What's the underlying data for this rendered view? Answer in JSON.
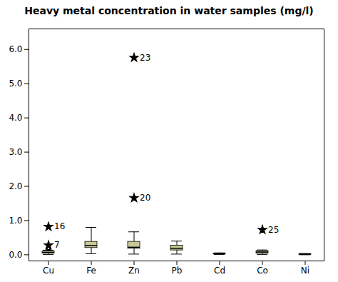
{
  "chart_data": {
    "type": "box",
    "title": "Heavy metal concentration in water samples (mg/l)",
    "categories": [
      "Cu",
      "Fe",
      "Zn",
      "Pb",
      "Cd",
      "Co",
      "Ni"
    ],
    "boxes": [
      {
        "q1": 0.04,
        "median": 0.07,
        "q3": 0.1,
        "whislo": 0.01,
        "whishi": 0.13,
        "extremes": [
          0.82,
          0.28
        ],
        "extreme_labels": [
          "16",
          "7"
        ],
        "outliers": [
          0.17,
          0.2
        ]
      },
      {
        "q1": 0.2,
        "median": 0.27,
        "q3": 0.38,
        "whislo": 0.03,
        "whishi": 0.8,
        "extremes": [],
        "extreme_labels": [],
        "outliers": []
      },
      {
        "q1": 0.18,
        "median": 0.22,
        "q3": 0.38,
        "whislo": 0.02,
        "whishi": 0.67,
        "extremes": [
          5.76,
          1.66
        ],
        "extreme_labels": [
          "23",
          "20"
        ],
        "outliers": []
      },
      {
        "q1": 0.13,
        "median": 0.19,
        "q3": 0.27,
        "whislo": 0.02,
        "whishi": 0.4,
        "extremes": [],
        "extreme_labels": [],
        "outliers": []
      },
      {
        "q1": 0.02,
        "median": 0.03,
        "q3": 0.04,
        "whislo": 0.01,
        "whishi": 0.055,
        "extremes": [],
        "extreme_labels": [],
        "outliers": []
      },
      {
        "q1": 0.04,
        "median": 0.08,
        "q3": 0.11,
        "whislo": 0.01,
        "whishi": 0.14,
        "extremes": [
          0.73
        ],
        "extreme_labels": [
          "25"
        ],
        "outliers": []
      },
      {
        "q1": 0.005,
        "median": 0.015,
        "q3": 0.025,
        "whislo": 0.0,
        "whishi": 0.035,
        "extremes": [],
        "extreme_labels": [],
        "outliers": []
      }
    ],
    "color": "#c8c896",
    "ylim": [
      -0.18,
      6.6
    ],
    "yticks": [
      0,
      1,
      2,
      3,
      4,
      5,
      6
    ]
  }
}
